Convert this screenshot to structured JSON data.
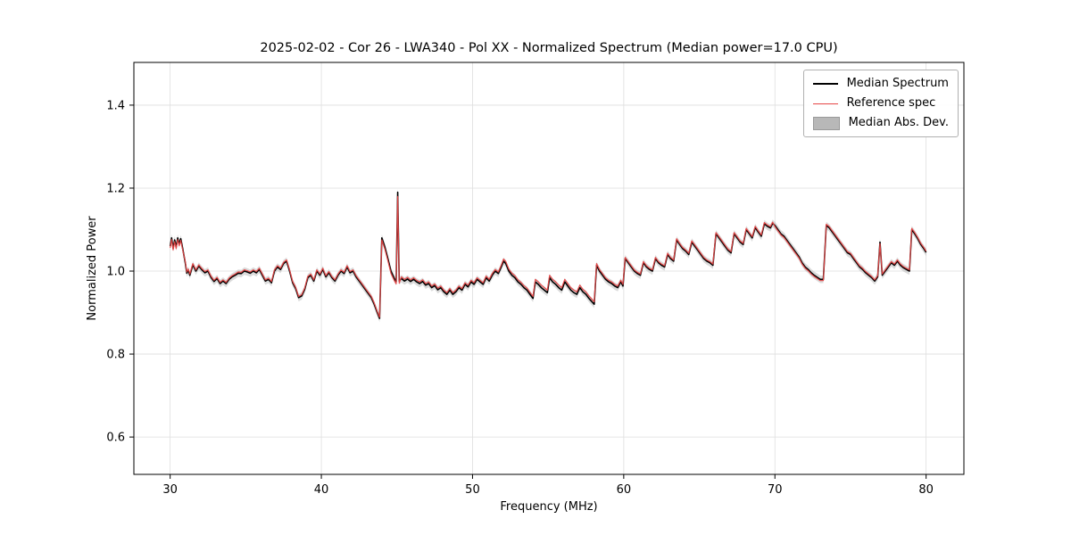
{
  "chart_data": {
    "type": "line",
    "title": "2025-02-02 - Cor 26 - LWA340 - Pol XX - Normalized Spectrum (Median power=17.0 CPU)",
    "xlabel": "Frequency (MHz)",
    "ylabel": "Normalized Power",
    "xlim": [
      27.6,
      82.5
    ],
    "ylim": [
      0.51,
      1.503
    ],
    "xticks": [
      30,
      40,
      50,
      60,
      70,
      80
    ],
    "xtick_labels": [
      "30",
      "40",
      "50",
      "60",
      "70",
      "80"
    ],
    "yticks": [
      0.6,
      0.8,
      1.0,
      1.2,
      1.4
    ],
    "ytick_labels": [
      "0.6",
      "0.8",
      "1.0",
      "1.2",
      "1.4"
    ],
    "grid": true,
    "grid_color": "#dedede",
    "legend_position": "upper right",
    "band": {
      "name": "Median Abs. Dev.",
      "color": "#b8b8b8",
      "opacity": 0.5,
      "half_width": 0.009
    },
    "series_meta": [
      {
        "name": "Median Spectrum",
        "color": "#000000",
        "width": 1.6
      },
      {
        "name": "Reference spec",
        "color": "#e64545",
        "width": 1.2
      }
    ],
    "points_format": [
      "frequency_mhz",
      "median_spectrum",
      "reference_spec"
    ],
    "points": [
      [
        30.0,
        1.06,
        1.056
      ],
      [
        30.1,
        1.08,
        1.076
      ],
      [
        30.2,
        1.055,
        1.051
      ],
      [
        30.3,
        1.075,
        1.071
      ],
      [
        30.4,
        1.058,
        1.054
      ],
      [
        30.5,
        1.08,
        1.076
      ],
      [
        30.6,
        1.065,
        1.061
      ],
      [
        30.7,
        1.078,
        1.074
      ],
      [
        30.8,
        1.06,
        1.056
      ],
      [
        31.0,
        1.02,
        1.023
      ],
      [
        31.1,
        0.995,
        0.998
      ],
      [
        31.2,
        1.002,
        1.005
      ],
      [
        31.3,
        0.99,
        0.993
      ],
      [
        31.5,
        1.015,
        1.018
      ],
      [
        31.7,
        1.0,
        1.003
      ],
      [
        31.9,
        1.012,
        1.015
      ],
      [
        32.1,
        1.003,
        1.006
      ],
      [
        32.3,
        0.996,
        0.999
      ],
      [
        32.5,
        1.0,
        1.003
      ],
      [
        32.7,
        0.985,
        0.988
      ],
      [
        32.9,
        0.975,
        0.978
      ],
      [
        33.1,
        0.982,
        0.985
      ],
      [
        33.3,
        0.97,
        0.973
      ],
      [
        33.5,
        0.976,
        0.979
      ],
      [
        33.7,
        0.97,
        0.973
      ],
      [
        33.9,
        0.98,
        0.983
      ],
      [
        34.1,
        0.986,
        0.989
      ],
      [
        34.3,
        0.99,
        0.993
      ],
      [
        34.5,
        0.995,
        0.998
      ],
      [
        34.7,
        0.994,
        0.997
      ],
      [
        34.9,
        1.0,
        1.003
      ],
      [
        35.1,
        0.998,
        1.001
      ],
      [
        35.3,
        0.995,
        0.998
      ],
      [
        35.5,
        1.0,
        1.003
      ],
      [
        35.7,
        0.996,
        0.999
      ],
      [
        35.9,
        1.004,
        1.007
      ],
      [
        36.1,
        0.99,
        0.993
      ],
      [
        36.3,
        0.976,
        0.979
      ],
      [
        36.5,
        0.98,
        0.983
      ],
      [
        36.7,
        0.972,
        0.975
      ],
      [
        36.9,
        1.0,
        1.003
      ],
      [
        37.1,
        1.01,
        1.013
      ],
      [
        37.3,
        1.004,
        1.007
      ],
      [
        37.5,
        1.018,
        1.021
      ],
      [
        37.7,
        1.024,
        1.027
      ],
      [
        37.9,
        1.0,
        1.003
      ],
      [
        38.1,
        0.972,
        0.975
      ],
      [
        38.3,
        0.958,
        0.961
      ],
      [
        38.5,
        0.936,
        0.939
      ],
      [
        38.7,
        0.94,
        0.943
      ],
      [
        38.9,
        0.956,
        0.959
      ],
      [
        39.1,
        0.984,
        0.987
      ],
      [
        39.3,
        0.99,
        0.993
      ],
      [
        39.5,
        0.976,
        0.979
      ],
      [
        39.7,
        1.0,
        1.003
      ],
      [
        39.9,
        0.99,
        0.993
      ],
      [
        40.1,
        1.004,
        1.007
      ],
      [
        40.3,
        0.986,
        0.989
      ],
      [
        40.5,
        0.996,
        0.999
      ],
      [
        40.7,
        0.984,
        0.987
      ],
      [
        40.9,
        0.976,
        0.979
      ],
      [
        41.1,
        0.99,
        0.993
      ],
      [
        41.3,
        1.0,
        1.003
      ],
      [
        41.5,
        0.994,
        0.997
      ],
      [
        41.7,
        1.01,
        1.013
      ],
      [
        41.9,
        0.996,
        0.999
      ],
      [
        42.1,
        1.0,
        1.003
      ],
      [
        42.3,
        0.986,
        0.989
      ],
      [
        42.5,
        0.976,
        0.979
      ],
      [
        42.7,
        0.966,
        0.969
      ],
      [
        42.9,
        0.956,
        0.959
      ],
      [
        43.1,
        0.946,
        0.949
      ],
      [
        43.3,
        0.936,
        0.939
      ],
      [
        43.5,
        0.92,
        0.923
      ],
      [
        43.7,
        0.9,
        0.903
      ],
      [
        43.85,
        0.886,
        0.889
      ],
      [
        44.0,
        1.08,
        1.075
      ],
      [
        44.2,
        1.058,
        1.053
      ],
      [
        44.4,
        1.03,
        1.025
      ],
      [
        44.6,
        1.0,
        0.995
      ],
      [
        44.8,
        0.984,
        0.979
      ],
      [
        44.95,
        0.974,
        0.969
      ],
      [
        45.05,
        1.19,
        1.18
      ],
      [
        45.15,
        0.976,
        0.971
      ],
      [
        45.3,
        0.982,
        0.986
      ],
      [
        45.5,
        0.976,
        0.98
      ],
      [
        45.7,
        0.981,
        0.985
      ],
      [
        45.9,
        0.975,
        0.979
      ],
      [
        46.1,
        0.98,
        0.984
      ],
      [
        46.3,
        0.974,
        0.978
      ],
      [
        46.5,
        0.97,
        0.974
      ],
      [
        46.7,
        0.975,
        0.979
      ],
      [
        46.9,
        0.966,
        0.97
      ],
      [
        47.1,
        0.97,
        0.974
      ],
      [
        47.3,
        0.96,
        0.964
      ],
      [
        47.5,
        0.965,
        0.969
      ],
      [
        47.7,
        0.955,
        0.959
      ],
      [
        47.9,
        0.96,
        0.964
      ],
      [
        48.1,
        0.95,
        0.954
      ],
      [
        48.3,
        0.944,
        0.948
      ],
      [
        48.5,
        0.954,
        0.958
      ],
      [
        48.7,
        0.944,
        0.948
      ],
      [
        48.9,
        0.95,
        0.954
      ],
      [
        49.1,
        0.96,
        0.964
      ],
      [
        49.3,
        0.954,
        0.958
      ],
      [
        49.5,
        0.968,
        0.972
      ],
      [
        49.7,
        0.962,
        0.966
      ],
      [
        49.9,
        0.974,
        0.978
      ],
      [
        50.1,
        0.968,
        0.972
      ],
      [
        50.3,
        0.98,
        0.984
      ],
      [
        50.5,
        0.974,
        0.978
      ],
      [
        50.7,
        0.968,
        0.972
      ],
      [
        50.9,
        0.984,
        0.988
      ],
      [
        51.1,
        0.976,
        0.98
      ],
      [
        51.3,
        0.99,
        0.994
      ],
      [
        51.5,
        1.0,
        1.004
      ],
      [
        51.7,
        0.994,
        0.998
      ],
      [
        51.9,
        1.01,
        1.014
      ],
      [
        52.05,
        1.024,
        1.029
      ],
      [
        52.2,
        1.018,
        1.023
      ],
      [
        52.4,
        1.0,
        1.005
      ],
      [
        52.6,
        0.99,
        0.995
      ],
      [
        52.8,
        0.984,
        0.989
      ],
      [
        53.0,
        0.974,
        0.979
      ],
      [
        53.2,
        0.968,
        0.973
      ],
      [
        53.4,
        0.96,
        0.965
      ],
      [
        53.6,
        0.954,
        0.959
      ],
      [
        53.8,
        0.944,
        0.949
      ],
      [
        54.0,
        0.934,
        0.939
      ],
      [
        54.15,
        0.974,
        0.98
      ],
      [
        54.35,
        0.968,
        0.974
      ],
      [
        54.55,
        0.96,
        0.966
      ],
      [
        54.75,
        0.954,
        0.96
      ],
      [
        54.95,
        0.948,
        0.954
      ],
      [
        55.1,
        0.984,
        0.99
      ],
      [
        55.3,
        0.974,
        0.98
      ],
      [
        55.5,
        0.968,
        0.974
      ],
      [
        55.7,
        0.96,
        0.966
      ],
      [
        55.9,
        0.954,
        0.96
      ],
      [
        56.1,
        0.974,
        0.98
      ],
      [
        56.3,
        0.964,
        0.97
      ],
      [
        56.5,
        0.954,
        0.96
      ],
      [
        56.7,
        0.948,
        0.954
      ],
      [
        56.9,
        0.944,
        0.95
      ],
      [
        57.1,
        0.96,
        0.966
      ],
      [
        57.3,
        0.95,
        0.956
      ],
      [
        57.5,
        0.944,
        0.95
      ],
      [
        57.7,
        0.934,
        0.94
      ],
      [
        57.9,
        0.926,
        0.932
      ],
      [
        58.05,
        0.92,
        0.926
      ],
      [
        58.2,
        1.014,
        1.018
      ],
      [
        58.4,
        1.0,
        1.004
      ],
      [
        58.6,
        0.99,
        0.994
      ],
      [
        58.8,
        0.98,
        0.984
      ],
      [
        59.0,
        0.974,
        0.978
      ],
      [
        59.2,
        0.97,
        0.974
      ],
      [
        59.4,
        0.964,
        0.968
      ],
      [
        59.6,
        0.96,
        0.964
      ],
      [
        59.8,
        0.974,
        0.978
      ],
      [
        59.95,
        0.964,
        0.968
      ],
      [
        60.1,
        1.03,
        1.033
      ],
      [
        60.3,
        1.02,
        1.023
      ],
      [
        60.5,
        1.01,
        1.013
      ],
      [
        60.7,
        1.0,
        1.003
      ],
      [
        60.9,
        0.994,
        0.997
      ],
      [
        61.1,
        0.99,
        0.993
      ],
      [
        61.3,
        1.02,
        1.023
      ],
      [
        61.5,
        1.01,
        1.013
      ],
      [
        61.7,
        1.004,
        1.007
      ],
      [
        61.9,
        1.0,
        1.003
      ],
      [
        62.1,
        1.03,
        1.033
      ],
      [
        62.3,
        1.02,
        1.023
      ],
      [
        62.5,
        1.014,
        1.017
      ],
      [
        62.7,
        1.01,
        1.013
      ],
      [
        62.9,
        1.04,
        1.043
      ],
      [
        63.1,
        1.03,
        1.033
      ],
      [
        63.3,
        1.024,
        1.027
      ],
      [
        63.5,
        1.075,
        1.078
      ],
      [
        63.7,
        1.064,
        1.067
      ],
      [
        63.9,
        1.054,
        1.057
      ],
      [
        64.1,
        1.048,
        1.051
      ],
      [
        64.3,
        1.04,
        1.043
      ],
      [
        64.5,
        1.07,
        1.073
      ],
      [
        64.7,
        1.06,
        1.063
      ],
      [
        64.9,
        1.05,
        1.053
      ],
      [
        65.1,
        1.04,
        1.043
      ],
      [
        65.3,
        1.03,
        1.033
      ],
      [
        65.5,
        1.024,
        1.027
      ],
      [
        65.7,
        1.02,
        1.023
      ],
      [
        65.9,
        1.014,
        1.017
      ],
      [
        66.1,
        1.09,
        1.093
      ],
      [
        66.3,
        1.08,
        1.083
      ],
      [
        66.5,
        1.07,
        1.073
      ],
      [
        66.7,
        1.06,
        1.063
      ],
      [
        66.9,
        1.05,
        1.053
      ],
      [
        67.1,
        1.044,
        1.047
      ],
      [
        67.3,
        1.09,
        1.093
      ],
      [
        67.5,
        1.08,
        1.083
      ],
      [
        67.7,
        1.07,
        1.073
      ],
      [
        67.9,
        1.064,
        1.067
      ],
      [
        68.1,
        1.1,
        1.103
      ],
      [
        68.3,
        1.09,
        1.093
      ],
      [
        68.5,
        1.08,
        1.083
      ],
      [
        68.7,
        1.105,
        1.108
      ],
      [
        68.9,
        1.094,
        1.097
      ],
      [
        69.1,
        1.084,
        1.087
      ],
      [
        69.3,
        1.114,
        1.117
      ],
      [
        69.5,
        1.108,
        1.111
      ],
      [
        69.7,
        1.104,
        1.107
      ],
      [
        69.85,
        1.115,
        1.118
      ],
      [
        70.0,
        1.11,
        1.107
      ],
      [
        70.2,
        1.1,
        1.097
      ],
      [
        70.4,
        1.09,
        1.087
      ],
      [
        70.6,
        1.084,
        1.081
      ],
      [
        70.8,
        1.074,
        1.071
      ],
      [
        71.0,
        1.064,
        1.061
      ],
      [
        71.2,
        1.054,
        1.051
      ],
      [
        71.4,
        1.044,
        1.041
      ],
      [
        71.6,
        1.034,
        1.031
      ],
      [
        71.8,
        1.02,
        1.017
      ],
      [
        72.0,
        1.01,
        1.007
      ],
      [
        72.2,
        1.004,
        1.001
      ],
      [
        72.4,
        0.996,
        0.993
      ],
      [
        72.6,
        0.99,
        0.987
      ],
      [
        72.8,
        0.985,
        0.982
      ],
      [
        73.0,
        0.98,
        0.977
      ],
      [
        73.2,
        0.98,
        0.977
      ],
      [
        73.4,
        1.11,
        1.113
      ],
      [
        73.6,
        1.104,
        1.107
      ],
      [
        73.8,
        1.094,
        1.097
      ],
      [
        74.0,
        1.084,
        1.087
      ],
      [
        74.2,
        1.074,
        1.077
      ],
      [
        74.4,
        1.064,
        1.067
      ],
      [
        74.6,
        1.054,
        1.057
      ],
      [
        74.8,
        1.044,
        1.047
      ],
      [
        75.0,
        1.04,
        1.043
      ],
      [
        75.2,
        1.03,
        1.033
      ],
      [
        75.4,
        1.02,
        1.023
      ],
      [
        75.6,
        1.01,
        1.013
      ],
      [
        75.8,
        1.004,
        1.007
      ],
      [
        76.0,
        0.996,
        0.999
      ],
      [
        76.2,
        0.99,
        0.993
      ],
      [
        76.4,
        0.984,
        0.987
      ],
      [
        76.6,
        0.976,
        0.979
      ],
      [
        76.8,
        0.986,
        0.989
      ],
      [
        76.95,
        1.07,
        1.066
      ],
      [
        77.1,
        0.99,
        0.993
      ],
      [
        77.3,
        1.0,
        1.003
      ],
      [
        77.5,
        1.01,
        1.013
      ],
      [
        77.7,
        1.02,
        1.023
      ],
      [
        77.9,
        1.014,
        1.017
      ],
      [
        78.1,
        1.024,
        1.027
      ],
      [
        78.3,
        1.014,
        1.017
      ],
      [
        78.5,
        1.008,
        1.011
      ],
      [
        78.7,
        1.004,
        1.007
      ],
      [
        78.9,
        1.0,
        1.003
      ],
      [
        79.05,
        1.1,
        1.103
      ],
      [
        79.25,
        1.09,
        1.093
      ],
      [
        79.45,
        1.078,
        1.081
      ],
      [
        79.65,
        1.064,
        1.067
      ],
      [
        79.85,
        1.054,
        1.057
      ],
      [
        80.0,
        1.045,
        1.048
      ]
    ]
  }
}
